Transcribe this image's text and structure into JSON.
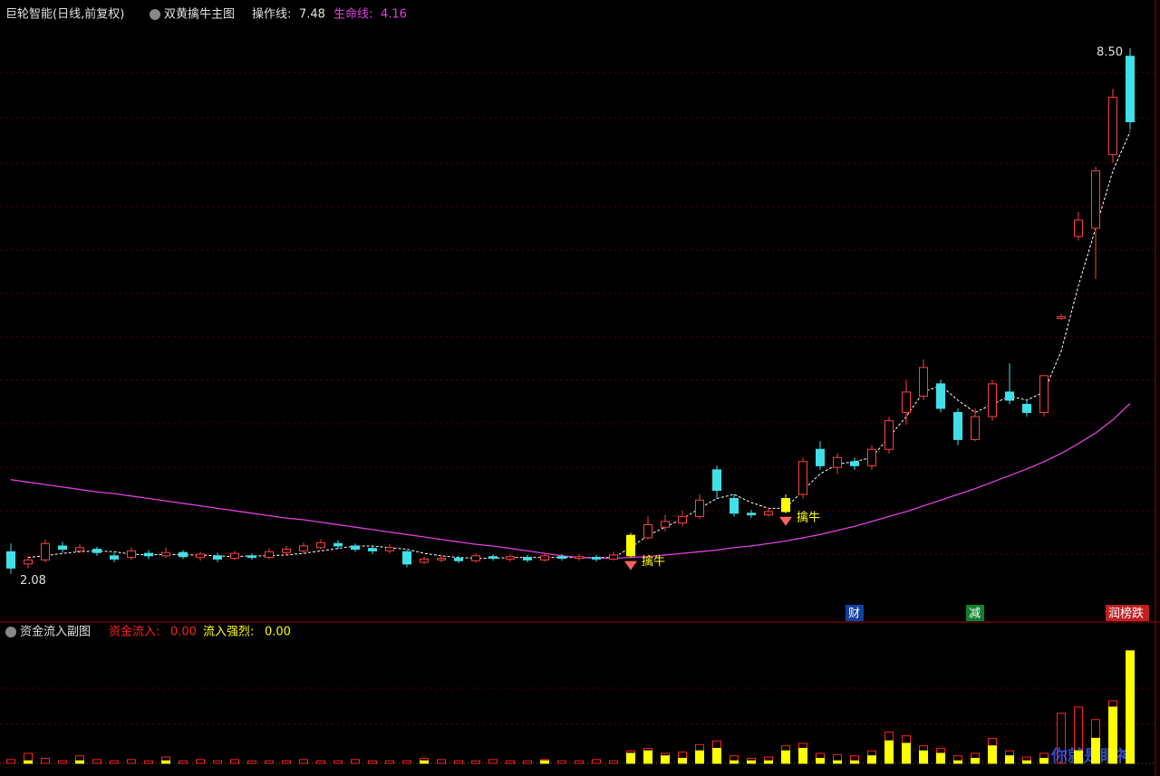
{
  "chart_data": [
    {
      "type": "candlestick",
      "title": "巨轮智能(日线,前复权)",
      "indicator": "双黄擒牛主图",
      "ylim": [
        1.9,
        8.7
      ],
      "up_color": "#ff4040",
      "down_color": "#40e0e8",
      "signal_color": "#ffff00",
      "candles": [
        [
          2.35,
          2.15,
          2.45,
          2.08
        ],
        [
          2.2,
          2.25,
          2.3,
          2.15
        ],
        [
          2.25,
          2.45,
          2.5,
          2.22
        ],
        [
          2.42,
          2.38,
          2.47,
          2.34
        ],
        [
          2.36,
          2.4,
          2.44,
          2.33
        ],
        [
          2.38,
          2.34,
          2.41,
          2.3
        ],
        [
          2.3,
          2.26,
          2.34,
          2.22
        ],
        [
          2.28,
          2.36,
          2.4,
          2.25
        ],
        [
          2.33,
          2.3,
          2.37,
          2.26
        ],
        [
          2.3,
          2.34,
          2.4,
          2.27
        ],
        [
          2.34,
          2.29,
          2.37,
          2.26
        ],
        [
          2.28,
          2.32,
          2.35,
          2.24
        ],
        [
          2.3,
          2.26,
          2.34,
          2.22
        ],
        [
          2.27,
          2.33,
          2.36,
          2.25
        ],
        [
          2.3,
          2.28,
          2.33,
          2.25
        ],
        [
          2.28,
          2.35,
          2.39,
          2.26
        ],
        [
          2.34,
          2.38,
          2.42,
          2.31
        ],
        [
          2.36,
          2.42,
          2.46,
          2.33
        ],
        [
          2.4,
          2.46,
          2.5,
          2.38
        ],
        [
          2.45,
          2.42,
          2.49,
          2.38
        ],
        [
          2.42,
          2.38,
          2.45,
          2.35
        ],
        [
          2.39,
          2.36,
          2.42,
          2.32
        ],
        [
          2.36,
          2.4,
          2.44,
          2.33
        ],
        [
          2.35,
          2.2,
          2.37,
          2.16
        ],
        [
          2.22,
          2.26,
          2.29,
          2.2
        ],
        [
          2.25,
          2.27,
          2.3,
          2.22
        ],
        [
          2.27,
          2.24,
          2.3,
          2.21
        ],
        [
          2.24,
          2.3,
          2.33,
          2.22
        ],
        [
          2.29,
          2.27,
          2.32,
          2.24
        ],
        [
          2.26,
          2.29,
          2.32,
          2.23
        ],
        [
          2.28,
          2.25,
          2.31,
          2.22
        ],
        [
          2.25,
          2.3,
          2.33,
          2.23
        ],
        [
          2.29,
          2.27,
          2.32,
          2.24
        ],
        [
          2.27,
          2.29,
          2.32,
          2.24
        ],
        [
          2.28,
          2.26,
          2.31,
          2.23
        ],
        [
          2.26,
          2.31,
          2.35,
          2.24
        ],
        [
          2.3,
          2.55,
          2.58,
          2.28
        ],
        [
          2.52,
          2.68,
          2.78,
          2.5
        ],
        [
          2.65,
          2.72,
          2.8,
          2.6
        ],
        [
          2.7,
          2.78,
          2.85,
          2.66
        ],
        [
          2.78,
          2.98,
          3.05,
          2.75
        ],
        [
          3.35,
          3.1,
          3.4,
          3.0
        ],
        [
          3.0,
          2.82,
          3.05,
          2.78
        ],
        [
          2.82,
          2.8,
          2.86,
          2.76
        ],
        [
          2.8,
          2.84,
          2.88,
          2.78
        ],
        [
          2.84,
          3.0,
          3.05,
          2.82
        ],
        [
          3.05,
          3.45,
          3.5,
          3.0
        ],
        [
          3.6,
          3.4,
          3.7,
          3.35
        ],
        [
          3.38,
          3.5,
          3.55,
          3.3
        ],
        [
          3.45,
          3.4,
          3.5,
          3.35
        ],
        [
          3.4,
          3.6,
          3.65,
          3.35
        ],
        [
          3.6,
          3.95,
          4.0,
          3.55
        ],
        [
          4.05,
          4.3,
          4.45,
          3.9
        ],
        [
          4.25,
          4.6,
          4.7,
          4.2
        ],
        [
          4.4,
          4.1,
          4.45,
          4.05
        ],
        [
          4.05,
          3.72,
          4.1,
          3.65
        ],
        [
          3.72,
          4.0,
          4.1,
          3.7
        ],
        [
          4.0,
          4.4,
          4.45,
          3.95
        ],
        [
          4.3,
          4.2,
          4.65,
          4.15
        ],
        [
          4.15,
          4.05,
          4.2,
          4.0
        ],
        [
          4.05,
          4.5,
          4.5,
          4.0
        ],
        [
          5.2,
          5.22,
          5.25,
          5.18
        ],
        [
          6.2,
          6.4,
          6.5,
          6.15
        ],
        [
          6.3,
          7.0,
          7.05,
          5.68
        ],
        [
          7.2,
          7.9,
          8.0,
          7.1
        ],
        [
          8.4,
          7.6,
          8.5,
          7.5
        ]
      ],
      "series": [
        {
          "name": "操作线:",
          "value": 7.48,
          "color": "#ffffff",
          "values": [
            null,
            2.28,
            2.3,
            2.33,
            2.35,
            2.36,
            2.35,
            2.32,
            2.31,
            2.32,
            2.31,
            2.31,
            2.3,
            2.29,
            2.3,
            2.3,
            2.31,
            2.33,
            2.36,
            2.39,
            2.42,
            2.42,
            2.4,
            2.38,
            2.33,
            2.3,
            2.28,
            2.27,
            2.27,
            2.28,
            2.28,
            2.28,
            2.28,
            2.28,
            2.28,
            2.28,
            2.4,
            2.55,
            2.65,
            2.75,
            2.88,
            3.0,
            3.05,
            2.95,
            2.88,
            2.88,
            3.1,
            3.3,
            3.42,
            3.45,
            3.5,
            3.75,
            4.0,
            4.3,
            4.38,
            4.2,
            4.05,
            4.15,
            4.25,
            4.2,
            4.3,
            4.8,
            5.6,
            6.3,
            7.0,
            7.48
          ]
        },
        {
          "name": "生命线:",
          "value": 4.16,
          "color": "#e040e0",
          "values": [
            3.23,
            3.2,
            3.17,
            3.14,
            3.11,
            3.08,
            3.06,
            3.03,
            3.0,
            2.97,
            2.94,
            2.91,
            2.88,
            2.85,
            2.82,
            2.79,
            2.76,
            2.74,
            2.71,
            2.68,
            2.65,
            2.62,
            2.59,
            2.56,
            2.53,
            2.5,
            2.47,
            2.44,
            2.42,
            2.39,
            2.36,
            2.33,
            2.3,
            2.28,
            2.27,
            2.27,
            2.28,
            2.29,
            2.31,
            2.33,
            2.35,
            2.37,
            2.4,
            2.42,
            2.45,
            2.48,
            2.52,
            2.56,
            2.61,
            2.66,
            2.72,
            2.78,
            2.84,
            2.91,
            2.98,
            3.05,
            3.12,
            3.2,
            3.28,
            3.36,
            3.45,
            3.55,
            3.67,
            3.8,
            3.96,
            4.16
          ]
        }
      ],
      "signals": [
        {
          "index": 36,
          "label": "擒牛"
        },
        {
          "index": 45,
          "label": "擒牛"
        }
      ],
      "low_marker": {
        "index": 0,
        "value": 2.08
      },
      "high_marker": {
        "index": 65,
        "value": 8.5,
        "label": "8.50"
      },
      "event_tags": [
        {
          "index": 49,
          "label": "财",
          "color": "#1040a0"
        },
        {
          "index": 56,
          "label": "减",
          "color": "#108030"
        },
        {
          "index": 65,
          "label": "润榜跌",
          "color": "#c02020"
        }
      ]
    },
    {
      "type": "bar",
      "title": "资金流入副图",
      "ylim": [
        0,
        100
      ],
      "series": [
        {
          "name": "资金流入:",
          "value_label": "0.00",
          "color": "#ff2020",
          "values": [
            3,
            8,
            4,
            2,
            6,
            3,
            2,
            3,
            2,
            5,
            2,
            3,
            2,
            3,
            2,
            2,
            2,
            3,
            2,
            2,
            3,
            2,
            2,
            2,
            4,
            3,
            2,
            2,
            3,
            2,
            2,
            3,
            2,
            2,
            3,
            2,
            10,
            12,
            8,
            9,
            15,
            18,
            6,
            4,
            5,
            14,
            16,
            8,
            7,
            6,
            10,
            25,
            22,
            14,
            12,
            6,
            8,
            20,
            10,
            5,
            8,
            40,
            45,
            35,
            50,
            90
          ]
        },
        {
          "name": "流入强烈:",
          "value_label": "0.00",
          "color": "#ffff00",
          "values": [
            0,
            2,
            0,
            0,
            2,
            0,
            0,
            0,
            0,
            2,
            0,
            0,
            0,
            0,
            0,
            0,
            0,
            0,
            0,
            0,
            0,
            0,
            0,
            0,
            2,
            0,
            0,
            0,
            0,
            0,
            0,
            2,
            0,
            0,
            0,
            0,
            8,
            10,
            6,
            4,
            10,
            12,
            2,
            2,
            2,
            10,
            12,
            4,
            2,
            2,
            6,
            18,
            16,
            10,
            8,
            2,
            4,
            14,
            6,
            2,
            4,
            0,
            10,
            20,
            45,
            90
          ]
        }
      ]
    }
  ],
  "watermark": "你就是眼神"
}
